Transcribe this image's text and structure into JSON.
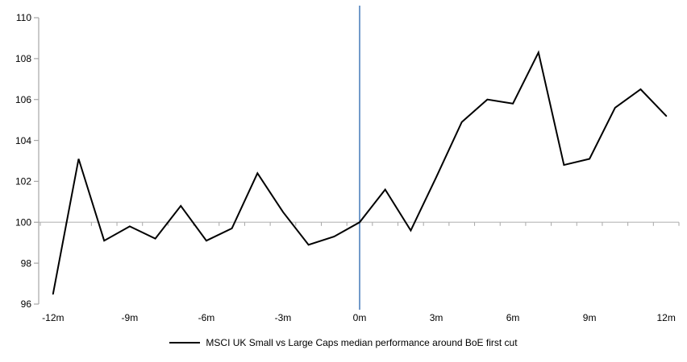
{
  "chart_data": {
    "type": "line",
    "title": "",
    "legend": "MSCI UK Small vs Large Caps median performance around BoE first cut",
    "x_months": [
      -12,
      -11,
      -10,
      -9,
      -8,
      -7,
      -6,
      -5,
      -4,
      -3,
      -2,
      -1,
      0,
      1,
      2,
      3,
      4,
      5,
      6,
      7,
      8,
      9,
      10,
      11,
      12
    ],
    "values": [
      96.5,
      103.1,
      99.1,
      99.8,
      99.2,
      100.8,
      99.1,
      99.7,
      102.4,
      100.5,
      98.9,
      99.3,
      100.0,
      101.6,
      99.6,
      102.2,
      104.9,
      106.0,
      105.8,
      108.3,
      102.8,
      103.1,
      105.6,
      106.5,
      105.2
    ],
    "x_tick_months": [
      -12,
      -9,
      -6,
      -3,
      0,
      3,
      6,
      9,
      12
    ],
    "x_tick_labels": [
      "-12m",
      "-9m",
      "-6m",
      "-3m",
      "0m",
      "3m",
      "6m",
      "9m",
      "12m"
    ],
    "y_ticks": [
      96,
      98,
      100,
      102,
      104,
      106,
      108,
      110
    ],
    "ylim": [
      96,
      110
    ],
    "baseline_value": 100,
    "event_line_month": 0,
    "grid": "baseline-only",
    "legend_position": "bottom-center",
    "colors": {
      "series": "#000000",
      "event_line": "#4F81BD",
      "baseline": "#BFBFBF",
      "axis": "#A6A6A6",
      "text": "#000000"
    }
  }
}
